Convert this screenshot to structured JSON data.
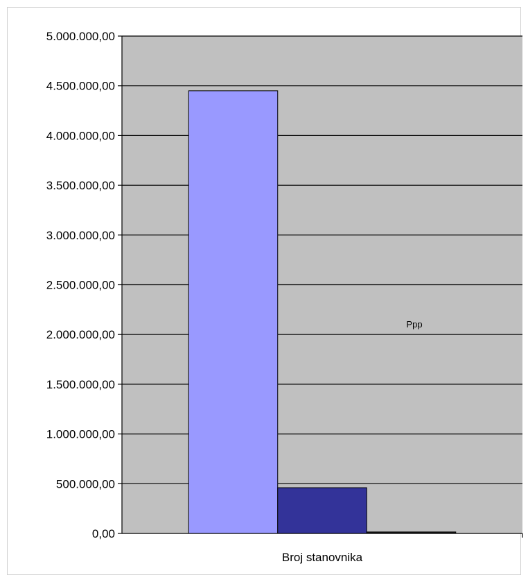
{
  "chart_data": {
    "type": "bar",
    "categories": [
      "Broj stanovnika"
    ],
    "series": [
      {
        "values": [
          4450000
        ],
        "color": "#9999ff"
      },
      {
        "values": [
          460000
        ],
        "color": "#333399"
      },
      {
        "values": [
          15000
        ],
        "color": "#1a1a1a"
      }
    ],
    "ylim": [
      0,
      5000000
    ],
    "yticks": [
      0,
      500000,
      1000000,
      1500000,
      2000000,
      2500000,
      3000000,
      3500000,
      4000000,
      4500000,
      5000000
    ],
    "ytick_labels": [
      "0,00",
      "500.000,00",
      "1.000.000,00",
      "1.500.000,00",
      "2.000.000,00",
      "2.500.000,00",
      "3.000.000,00",
      "3.500.000,00",
      "4.000.000,00",
      "4.500.000,00",
      "5.000.000,00"
    ],
    "annotation": "Ppp",
    "grid": true,
    "plot_background": "#c0c0c0",
    "gridline_color": "#000000"
  }
}
